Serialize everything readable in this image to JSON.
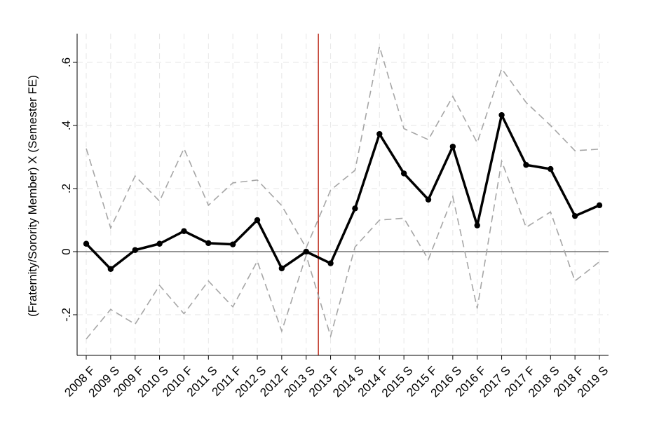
{
  "chart_data": {
    "type": "line",
    "title": "",
    "xlabel": "",
    "ylabel": "(Fraternity/Sorority Member) X (Semester FE)",
    "categories": [
      "2008 F",
      "2009 S",
      "2009 F",
      "2010 S",
      "2010 F",
      "2011 S",
      "2011 F",
      "2012 S",
      "2012 F",
      "2013 S",
      "2013 F",
      "2014 S",
      "2014 F",
      "2015 S",
      "2015 F",
      "2016 S",
      "2016 F",
      "2017 S",
      "2017 F",
      "2018 S",
      "2018 F",
      "2019 S"
    ],
    "yticks": [
      -0.2,
      0,
      0.2,
      0.4,
      0.6
    ],
    "ytick_labels": [
      "-.2",
      "0",
      ".2",
      ".4",
      ".6"
    ],
    "ylim": [
      -0.33,
      0.69
    ],
    "grid": true,
    "reference_line_y": 0,
    "vertical_marker_between": [
      "2013 S",
      "2013 F"
    ],
    "vertical_marker_color": "#c0392b",
    "series": [
      {
        "role": "estimate",
        "color": "#000000",
        "values": [
          0.025,
          -0.055,
          0.005,
          0.025,
          0.065,
          0.027,
          0.023,
          0.1,
          -0.053,
          0.0,
          -0.037,
          0.137,
          0.373,
          0.248,
          0.165,
          0.333,
          0.083,
          0.433,
          0.275,
          0.262,
          0.113,
          0.147
        ]
      },
      {
        "role": "upper_ci",
        "color": "#a6a6a6",
        "values": [
          0.327,
          0.075,
          0.24,
          0.16,
          0.327,
          0.147,
          0.218,
          0.227,
          0.146,
          0.012,
          0.195,
          0.258,
          0.65,
          0.39,
          0.355,
          0.492,
          0.345,
          0.58,
          0.473,
          0.4,
          0.32,
          0.325
        ]
      },
      {
        "role": "lower_ci",
        "color": "#a6a6a6",
        "values": [
          -0.277,
          -0.183,
          -0.23,
          -0.107,
          -0.197,
          -0.093,
          -0.175,
          -0.03,
          -0.252,
          -0.012,
          -0.268,
          0.015,
          0.1,
          0.106,
          -0.025,
          0.174,
          -0.18,
          0.287,
          0.077,
          0.126,
          -0.093,
          -0.032
        ]
      }
    ]
  }
}
